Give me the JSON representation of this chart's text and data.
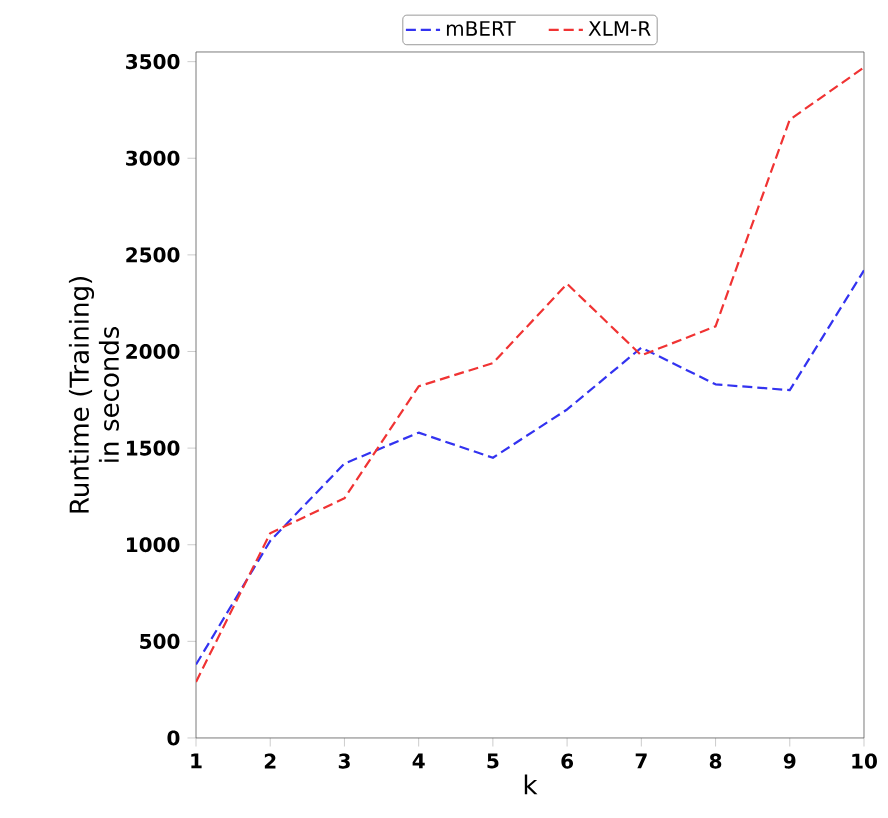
{
  "chart_data": {
    "type": "line",
    "xlabel": "k",
    "ylabel": "Runtime (Training) in seconds",
    "x": [
      1,
      2,
      3,
      4,
      5,
      6,
      7,
      8,
      9,
      10
    ],
    "series": [
      {
        "name": "mBERT",
        "color": "#3333f0",
        "values": [
          380,
          1020,
          1420,
          1580,
          1450,
          1700,
          2020,
          1830,
          1800,
          2420
        ]
      },
      {
        "name": "XLM-R",
        "color": "#f03333",
        "values": [
          290,
          1060,
          1240,
          1820,
          1940,
          2350,
          1980,
          2130,
          3200,
          3470
        ]
      }
    ],
    "xlim": [
      1,
      10
    ],
    "ylim": [
      0,
      3550
    ],
    "xticks": [
      1,
      2,
      3,
      4,
      5,
      6,
      7,
      8,
      9,
      10
    ],
    "yticks": [
      0,
      500,
      1000,
      1500,
      2000,
      2500,
      3000,
      3500
    ],
    "legend": "top",
    "line_style": "dashed",
    "marker": "none",
    "grid": false
  }
}
